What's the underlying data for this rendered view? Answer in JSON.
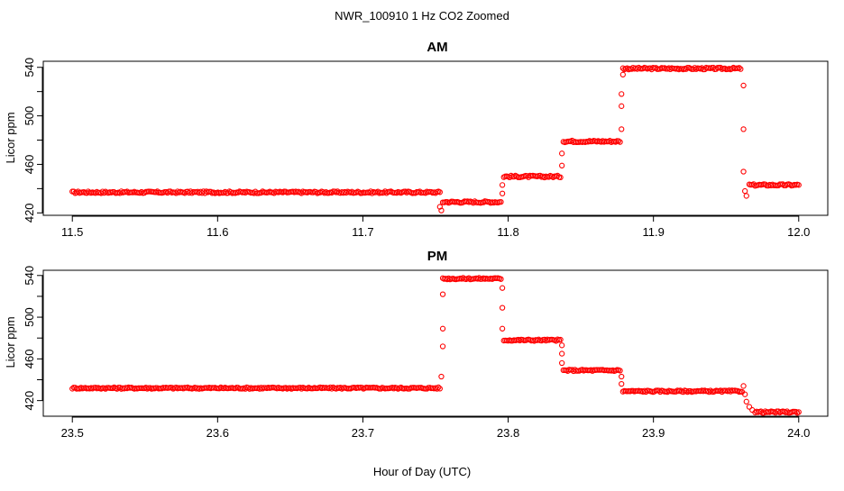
{
  "figure": {
    "title": "NWR_100910  1 Hz CO2 Zoomed",
    "xlabel": "Hour of Day (UTC)"
  },
  "chart_data": [
    {
      "type": "scatter",
      "title": "AM",
      "xlabel": "",
      "ylabel": "Licor ppm",
      "xlim": [
        11.5,
        12.0
      ],
      "ylim": [
        418,
        545
      ],
      "xticks": [
        "11.5",
        "11.6",
        "11.7",
        "11.8",
        "11.9",
        "12.0"
      ],
      "yticks": [
        "420",
        "460",
        "500",
        "540"
      ],
      "marker_color": "#ff0000",
      "segments": [
        {
          "x_start": 11.5,
          "x_end": 11.753,
          "value": 437
        },
        {
          "x_start": 11.755,
          "x_end": 11.795,
          "value": 429
        },
        {
          "x_start": 11.797,
          "x_end": 11.836,
          "value": 450
        },
        {
          "x_start": 11.838,
          "x_end": 11.877,
          "value": 479
        },
        {
          "x_start": 11.879,
          "x_end": 11.96,
          "value": 539
        },
        {
          "x_start": 11.966,
          "x_end": 12.0,
          "value": 443
        }
      ],
      "transitions": [
        {
          "x": 11.753,
          "value": 425
        },
        {
          "x": 11.754,
          "value": 422
        },
        {
          "x": 11.796,
          "value": 436
        },
        {
          "x": 11.796,
          "value": 443
        },
        {
          "x": 11.837,
          "value": 459
        },
        {
          "x": 11.837,
          "value": 469
        },
        {
          "x": 11.878,
          "value": 489
        },
        {
          "x": 11.878,
          "value": 508
        },
        {
          "x": 11.878,
          "value": 518
        },
        {
          "x": 11.879,
          "value": 534
        },
        {
          "x": 11.962,
          "value": 525
        },
        {
          "x": 11.962,
          "value": 489
        },
        {
          "x": 11.962,
          "value": 454
        },
        {
          "x": 11.963,
          "value": 438
        },
        {
          "x": 11.964,
          "value": 434
        }
      ]
    },
    {
      "type": "scatter",
      "title": "PM",
      "xlabel": "",
      "ylabel": "Licor ppm",
      "xlim": [
        23.5,
        24.0
      ],
      "ylim": [
        405,
        545
      ],
      "xticks": [
        "23.5",
        "23.6",
        "23.7",
        "23.8",
        "23.9",
        "24.0"
      ],
      "yticks": [
        "420",
        "460",
        "500",
        "540"
      ],
      "marker_color": "#ff0000",
      "segments": [
        {
          "x_start": 23.5,
          "x_end": 23.753,
          "value": 432
        },
        {
          "x_start": 23.755,
          "x_end": 23.795,
          "value": 537
        },
        {
          "x_start": 23.797,
          "x_end": 23.836,
          "value": 478
        },
        {
          "x_start": 23.838,
          "x_end": 23.877,
          "value": 449
        },
        {
          "x_start": 23.879,
          "x_end": 23.961,
          "value": 429
        },
        {
          "x_start": 23.97,
          "x_end": 24.0,
          "value": 409
        }
      ],
      "transitions": [
        {
          "x": 23.754,
          "value": 443
        },
        {
          "x": 23.755,
          "value": 472
        },
        {
          "x": 23.755,
          "value": 489
        },
        {
          "x": 23.755,
          "value": 522
        },
        {
          "x": 23.796,
          "value": 528
        },
        {
          "x": 23.796,
          "value": 509
        },
        {
          "x": 23.796,
          "value": 489
        },
        {
          "x": 23.837,
          "value": 473
        },
        {
          "x": 23.837,
          "value": 465
        },
        {
          "x": 23.837,
          "value": 456
        },
        {
          "x": 23.878,
          "value": 443
        },
        {
          "x": 23.878,
          "value": 436
        },
        {
          "x": 23.962,
          "value": 434
        },
        {
          "x": 23.963,
          "value": 426
        },
        {
          "x": 23.964,
          "value": 419
        },
        {
          "x": 23.966,
          "value": 414
        },
        {
          "x": 23.968,
          "value": 411
        }
      ]
    }
  ]
}
